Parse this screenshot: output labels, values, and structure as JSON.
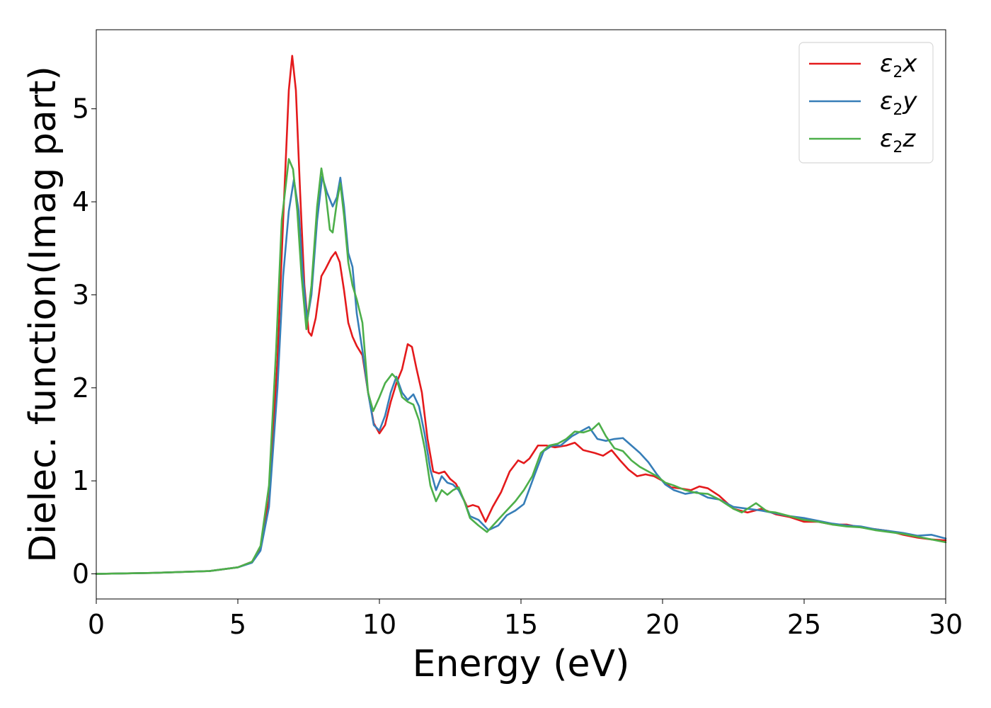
{
  "chart_data": {
    "type": "line",
    "xlabel": "Energy (eV)",
    "ylabel": "Dielec. function(Imag part)",
    "xlim": [
      0,
      30
    ],
    "ylim": [
      -0.27,
      5.85
    ],
    "xticks": [
      0,
      5,
      10,
      15,
      20,
      25,
      30
    ],
    "yticks": [
      0,
      1,
      2,
      3,
      4,
      5
    ],
    "grid": false,
    "legend_position": "top-right",
    "series": [
      {
        "name": "ε₂x",
        "legend_symbol": "ε",
        "legend_sub": "2",
        "legend_var": "x",
        "color": "#e41a1c",
        "points": [
          [
            0,
            0
          ],
          [
            2,
            0.01
          ],
          [
            4,
            0.03
          ],
          [
            5,
            0.07
          ],
          [
            5.5,
            0.13
          ],
          [
            5.8,
            0.28
          ],
          [
            6.1,
            0.8
          ],
          [
            6.4,
            2.3
          ],
          [
            6.6,
            3.8
          ],
          [
            6.8,
            5.2
          ],
          [
            6.92,
            5.57
          ],
          [
            7.05,
            5.2
          ],
          [
            7.2,
            4.1
          ],
          [
            7.35,
            3.1
          ],
          [
            7.5,
            2.6
          ],
          [
            7.6,
            2.56
          ],
          [
            7.75,
            2.75
          ],
          [
            7.95,
            3.2
          ],
          [
            8.1,
            3.28
          ],
          [
            8.3,
            3.4
          ],
          [
            8.45,
            3.46
          ],
          [
            8.6,
            3.35
          ],
          [
            8.75,
            3.05
          ],
          [
            8.9,
            2.7
          ],
          [
            9.05,
            2.55
          ],
          [
            9.2,
            2.45
          ],
          [
            9.4,
            2.35
          ],
          [
            9.6,
            1.95
          ],
          [
            9.8,
            1.62
          ],
          [
            10.0,
            1.51
          ],
          [
            10.2,
            1.6
          ],
          [
            10.4,
            1.85
          ],
          [
            10.6,
            2.05
          ],
          [
            10.8,
            2.2
          ],
          [
            11.0,
            2.47
          ],
          [
            11.15,
            2.44
          ],
          [
            11.3,
            2.22
          ],
          [
            11.5,
            1.95
          ],
          [
            11.7,
            1.45
          ],
          [
            11.9,
            1.1
          ],
          [
            12.1,
            1.08
          ],
          [
            12.3,
            1.1
          ],
          [
            12.5,
            1.02
          ],
          [
            12.7,
            0.97
          ],
          [
            12.9,
            0.85
          ],
          [
            13.1,
            0.72
          ],
          [
            13.3,
            0.74
          ],
          [
            13.5,
            0.72
          ],
          [
            13.75,
            0.56
          ],
          [
            14.0,
            0.72
          ],
          [
            14.3,
            0.88
          ],
          [
            14.6,
            1.1
          ],
          [
            14.9,
            1.22
          ],
          [
            15.1,
            1.19
          ],
          [
            15.3,
            1.24
          ],
          [
            15.6,
            1.38
          ],
          [
            15.9,
            1.38
          ],
          [
            16.2,
            1.36
          ],
          [
            16.6,
            1.38
          ],
          [
            16.9,
            1.41
          ],
          [
            17.2,
            1.33
          ],
          [
            17.6,
            1.3
          ],
          [
            17.9,
            1.27
          ],
          [
            18.2,
            1.33
          ],
          [
            18.5,
            1.22
          ],
          [
            18.8,
            1.12
          ],
          [
            19.1,
            1.05
          ],
          [
            19.4,
            1.07
          ],
          [
            19.7,
            1.05
          ],
          [
            20.0,
            1.0
          ],
          [
            20.3,
            0.93
          ],
          [
            20.6,
            0.92
          ],
          [
            21.0,
            0.9
          ],
          [
            21.3,
            0.94
          ],
          [
            21.6,
            0.92
          ],
          [
            22.0,
            0.84
          ],
          [
            22.5,
            0.7
          ],
          [
            23.0,
            0.66
          ],
          [
            23.5,
            0.7
          ],
          [
            24.0,
            0.64
          ],
          [
            24.5,
            0.61
          ],
          [
            25.0,
            0.56
          ],
          [
            25.5,
            0.56
          ],
          [
            26.0,
            0.53
          ],
          [
            26.5,
            0.53
          ],
          [
            27.0,
            0.5
          ],
          [
            27.5,
            0.48
          ],
          [
            28.0,
            0.46
          ],
          [
            28.5,
            0.42
          ],
          [
            29.0,
            0.39
          ],
          [
            29.5,
            0.37
          ],
          [
            30.0,
            0.36
          ]
        ]
      },
      {
        "name": "ε₂y",
        "legend_symbol": "ε",
        "legend_sub": "2",
        "legend_var": "y",
        "color": "#377eb8",
        "points": [
          [
            0,
            0
          ],
          [
            2,
            0.01
          ],
          [
            4,
            0.03
          ],
          [
            5,
            0.07
          ],
          [
            5.5,
            0.12
          ],
          [
            5.8,
            0.25
          ],
          [
            6.1,
            0.72
          ],
          [
            6.4,
            2.0
          ],
          [
            6.6,
            3.2
          ],
          [
            6.8,
            3.9
          ],
          [
            6.98,
            4.24
          ],
          [
            7.15,
            3.9
          ],
          [
            7.3,
            3.2
          ],
          [
            7.45,
            2.72
          ],
          [
            7.6,
            3.0
          ],
          [
            7.8,
            3.8
          ],
          [
            7.98,
            4.27
          ],
          [
            8.15,
            4.1
          ],
          [
            8.35,
            3.95
          ],
          [
            8.5,
            4.05
          ],
          [
            8.62,
            4.26
          ],
          [
            8.75,
            3.95
          ],
          [
            8.9,
            3.45
          ],
          [
            9.05,
            3.3
          ],
          [
            9.2,
            2.8
          ],
          [
            9.4,
            2.4
          ],
          [
            9.6,
            1.95
          ],
          [
            9.8,
            1.6
          ],
          [
            10.0,
            1.54
          ],
          [
            10.2,
            1.7
          ],
          [
            10.4,
            1.95
          ],
          [
            10.6,
            2.12
          ],
          [
            10.8,
            1.95
          ],
          [
            11.0,
            1.87
          ],
          [
            11.2,
            1.93
          ],
          [
            11.4,
            1.8
          ],
          [
            11.6,
            1.5
          ],
          [
            11.8,
            1.12
          ],
          [
            12.0,
            0.9
          ],
          [
            12.2,
            1.05
          ],
          [
            12.4,
            0.98
          ],
          [
            12.6,
            0.96
          ],
          [
            12.8,
            0.9
          ],
          [
            13.0,
            0.78
          ],
          [
            13.2,
            0.62
          ],
          [
            13.5,
            0.58
          ],
          [
            13.85,
            0.47
          ],
          [
            14.2,
            0.52
          ],
          [
            14.5,
            0.63
          ],
          [
            14.8,
            0.68
          ],
          [
            15.1,
            0.75
          ],
          [
            15.5,
            1.08
          ],
          [
            15.8,
            1.32
          ],
          [
            16.1,
            1.38
          ],
          [
            16.4,
            1.38
          ],
          [
            16.8,
            1.48
          ],
          [
            17.1,
            1.53
          ],
          [
            17.4,
            1.58
          ],
          [
            17.7,
            1.45
          ],
          [
            18.0,
            1.43
          ],
          [
            18.3,
            1.45
          ],
          [
            18.6,
            1.46
          ],
          [
            18.9,
            1.38
          ],
          [
            19.2,
            1.3
          ],
          [
            19.5,
            1.2
          ],
          [
            19.8,
            1.07
          ],
          [
            20.1,
            0.96
          ],
          [
            20.4,
            0.9
          ],
          [
            20.8,
            0.86
          ],
          [
            21.2,
            0.88
          ],
          [
            21.6,
            0.82
          ],
          [
            22.0,
            0.8
          ],
          [
            22.5,
            0.72
          ],
          [
            23.0,
            0.7
          ],
          [
            23.5,
            0.68
          ],
          [
            24.0,
            0.65
          ],
          [
            24.5,
            0.62
          ],
          [
            25.0,
            0.6
          ],
          [
            25.5,
            0.57
          ],
          [
            26.0,
            0.54
          ],
          [
            26.5,
            0.52
          ],
          [
            27.0,
            0.51
          ],
          [
            27.5,
            0.48
          ],
          [
            28.0,
            0.46
          ],
          [
            28.5,
            0.44
          ],
          [
            29.0,
            0.41
          ],
          [
            29.5,
            0.42
          ],
          [
            30.0,
            0.38
          ]
        ]
      },
      {
        "name": "ε₂z",
        "legend_symbol": "ε",
        "legend_sub": "2",
        "legend_var": "z",
        "color": "#4daf4a",
        "points": [
          [
            0,
            0
          ],
          [
            2,
            0.01
          ],
          [
            4,
            0.03
          ],
          [
            5,
            0.07
          ],
          [
            5.5,
            0.13
          ],
          [
            5.8,
            0.3
          ],
          [
            6.1,
            0.95
          ],
          [
            6.35,
            2.4
          ],
          [
            6.55,
            3.8
          ],
          [
            6.8,
            4.46
          ],
          [
            6.95,
            4.35
          ],
          [
            7.1,
            3.9
          ],
          [
            7.25,
            3.2
          ],
          [
            7.42,
            2.63
          ],
          [
            7.6,
            3.1
          ],
          [
            7.8,
            3.95
          ],
          [
            7.95,
            4.36
          ],
          [
            8.1,
            4.1
          ],
          [
            8.25,
            3.7
          ],
          [
            8.35,
            3.67
          ],
          [
            8.5,
            4.0
          ],
          [
            8.62,
            4.2
          ],
          [
            8.75,
            3.85
          ],
          [
            8.9,
            3.35
          ],
          [
            9.05,
            3.1
          ],
          [
            9.2,
            2.95
          ],
          [
            9.4,
            2.7
          ],
          [
            9.6,
            1.95
          ],
          [
            9.78,
            1.75
          ],
          [
            10.0,
            1.9
          ],
          [
            10.2,
            2.05
          ],
          [
            10.45,
            2.15
          ],
          [
            10.6,
            2.1
          ],
          [
            10.8,
            1.9
          ],
          [
            11.0,
            1.85
          ],
          [
            11.2,
            1.82
          ],
          [
            11.4,
            1.65
          ],
          [
            11.6,
            1.35
          ],
          [
            11.8,
            0.95
          ],
          [
            12.0,
            0.78
          ],
          [
            12.2,
            0.9
          ],
          [
            12.4,
            0.85
          ],
          [
            12.6,
            0.9
          ],
          [
            12.8,
            0.93
          ],
          [
            13.0,
            0.78
          ],
          [
            13.2,
            0.6
          ],
          [
            13.5,
            0.52
          ],
          [
            13.8,
            0.45
          ],
          [
            14.1,
            0.55
          ],
          [
            14.4,
            0.65
          ],
          [
            14.8,
            0.78
          ],
          [
            15.1,
            0.9
          ],
          [
            15.4,
            1.05
          ],
          [
            15.7,
            1.3
          ],
          [
            16.0,
            1.38
          ],
          [
            16.3,
            1.4
          ],
          [
            16.6,
            1.45
          ],
          [
            16.9,
            1.53
          ],
          [
            17.2,
            1.52
          ],
          [
            17.5,
            1.55
          ],
          [
            17.75,
            1.62
          ],
          [
            18.0,
            1.48
          ],
          [
            18.3,
            1.35
          ],
          [
            18.6,
            1.32
          ],
          [
            18.9,
            1.22
          ],
          [
            19.2,
            1.15
          ],
          [
            19.5,
            1.1
          ],
          [
            19.8,
            1.05
          ],
          [
            20.1,
            0.98
          ],
          [
            20.4,
            0.95
          ],
          [
            20.8,
            0.9
          ],
          [
            21.2,
            0.87
          ],
          [
            21.6,
            0.86
          ],
          [
            22.0,
            0.8
          ],
          [
            22.5,
            0.7
          ],
          [
            22.8,
            0.66
          ],
          [
            23.3,
            0.76
          ],
          [
            23.7,
            0.67
          ],
          [
            24.0,
            0.66
          ],
          [
            24.5,
            0.62
          ],
          [
            25.0,
            0.58
          ],
          [
            25.5,
            0.56
          ],
          [
            26.0,
            0.53
          ],
          [
            26.5,
            0.51
          ],
          [
            27.0,
            0.5
          ],
          [
            27.5,
            0.47
          ],
          [
            28.0,
            0.45
          ],
          [
            28.5,
            0.43
          ],
          [
            29.0,
            0.4
          ],
          [
            29.5,
            0.37
          ],
          [
            30.0,
            0.34
          ]
        ]
      }
    ]
  }
}
